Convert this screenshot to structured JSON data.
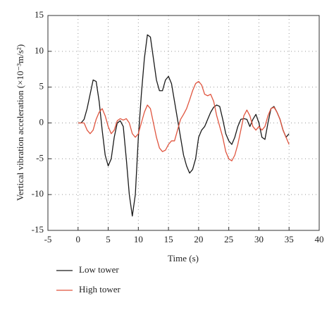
{
  "chart_data": {
    "type": "line",
    "x_label": "Time (s)",
    "y_label": "Vertical vibration acceleration (×10⁻³m/s²)",
    "x": [
      0,
      0.5,
      1,
      1.5,
      2,
      2.5,
      3,
      3.5,
      4,
      4.5,
      5,
      5.5,
      6,
      6.5,
      7,
      7.5,
      8,
      8.5,
      9,
      9.5,
      10,
      10.5,
      11,
      11.5,
      12,
      12.5,
      13,
      13.5,
      14,
      14.5,
      15,
      15.5,
      16,
      16.5,
      17,
      17.5,
      18,
      18.5,
      19,
      19.5,
      20,
      20.5,
      21,
      21.5,
      22,
      22.5,
      23,
      23.5,
      24,
      24.5,
      25,
      25.5,
      26,
      26.5,
      27,
      27.5,
      28,
      28.5,
      29,
      29.5,
      30,
      30.5,
      31,
      31.5,
      32,
      32.5,
      33,
      33.5,
      34,
      34.5,
      35
    ],
    "series": [
      {
        "name": "Low tower",
        "color": "#1a1a1a",
        "values": [
          0,
          0,
          0.5,
          2,
          4,
          6,
          5.8,
          3,
          -1,
          -4.5,
          -6,
          -5,
          -2,
          0,
          0.3,
          -0.5,
          -5,
          -10,
          -13,
          -10,
          -2,
          4,
          9,
          12.3,
          12,
          9,
          6,
          4.5,
          4.5,
          6,
          6.5,
          5.5,
          3,
          0.5,
          -2,
          -4.5,
          -6,
          -7,
          -6.5,
          -5,
          -2,
          -1,
          -0.5,
          0.5,
          1.5,
          2.2,
          2.5,
          2.3,
          0.5,
          -1.5,
          -2.5,
          -3,
          -2,
          -0.5,
          0.5,
          0.6,
          0.5,
          -0.5,
          0.5,
          1.2,
          0,
          -2,
          -2.3,
          0,
          2,
          2.3,
          1.5,
          0.5,
          -1,
          -2,
          -1.5
        ]
      },
      {
        "name": "High tower",
        "color": "#e0553f",
        "values": [
          0,
          0,
          0,
          -1,
          -1.5,
          -1,
          0.5,
          1.5,
          2,
          1,
          -0.5,
          -1.5,
          -1,
          0.3,
          0.6,
          0.4,
          0.6,
          0,
          -1.5,
          -2,
          -1.5,
          0,
          1.5,
          2.5,
          2,
          0,
          -2,
          -3.5,
          -4,
          -3.8,
          -3,
          -2.5,
          -2.5,
          -1,
          0.5,
          1.2,
          2,
          3.2,
          4.5,
          5.5,
          5.8,
          5.3,
          4,
          3.8,
          4,
          3,
          1,
          -0.5,
          -2,
          -4,
          -5,
          -5.3,
          -4.5,
          -3,
          -1,
          1,
          1.8,
          1,
          -0.5,
          -1,
          -0.5,
          -1,
          -0.5,
          1,
          2,
          2.2,
          1.5,
          0.5,
          -1,
          -2,
          -3
        ]
      }
    ],
    "xlim": [
      -5,
      40
    ],
    "xticks": [
      -5,
      0,
      5,
      10,
      15,
      20,
      25,
      30,
      35,
      40
    ],
    "ylim": [
      -15,
      15
    ],
    "yticks": [
      -15,
      -10,
      -5,
      0,
      5,
      10,
      15
    ],
    "grid": true,
    "legend": "bottom-left"
  }
}
